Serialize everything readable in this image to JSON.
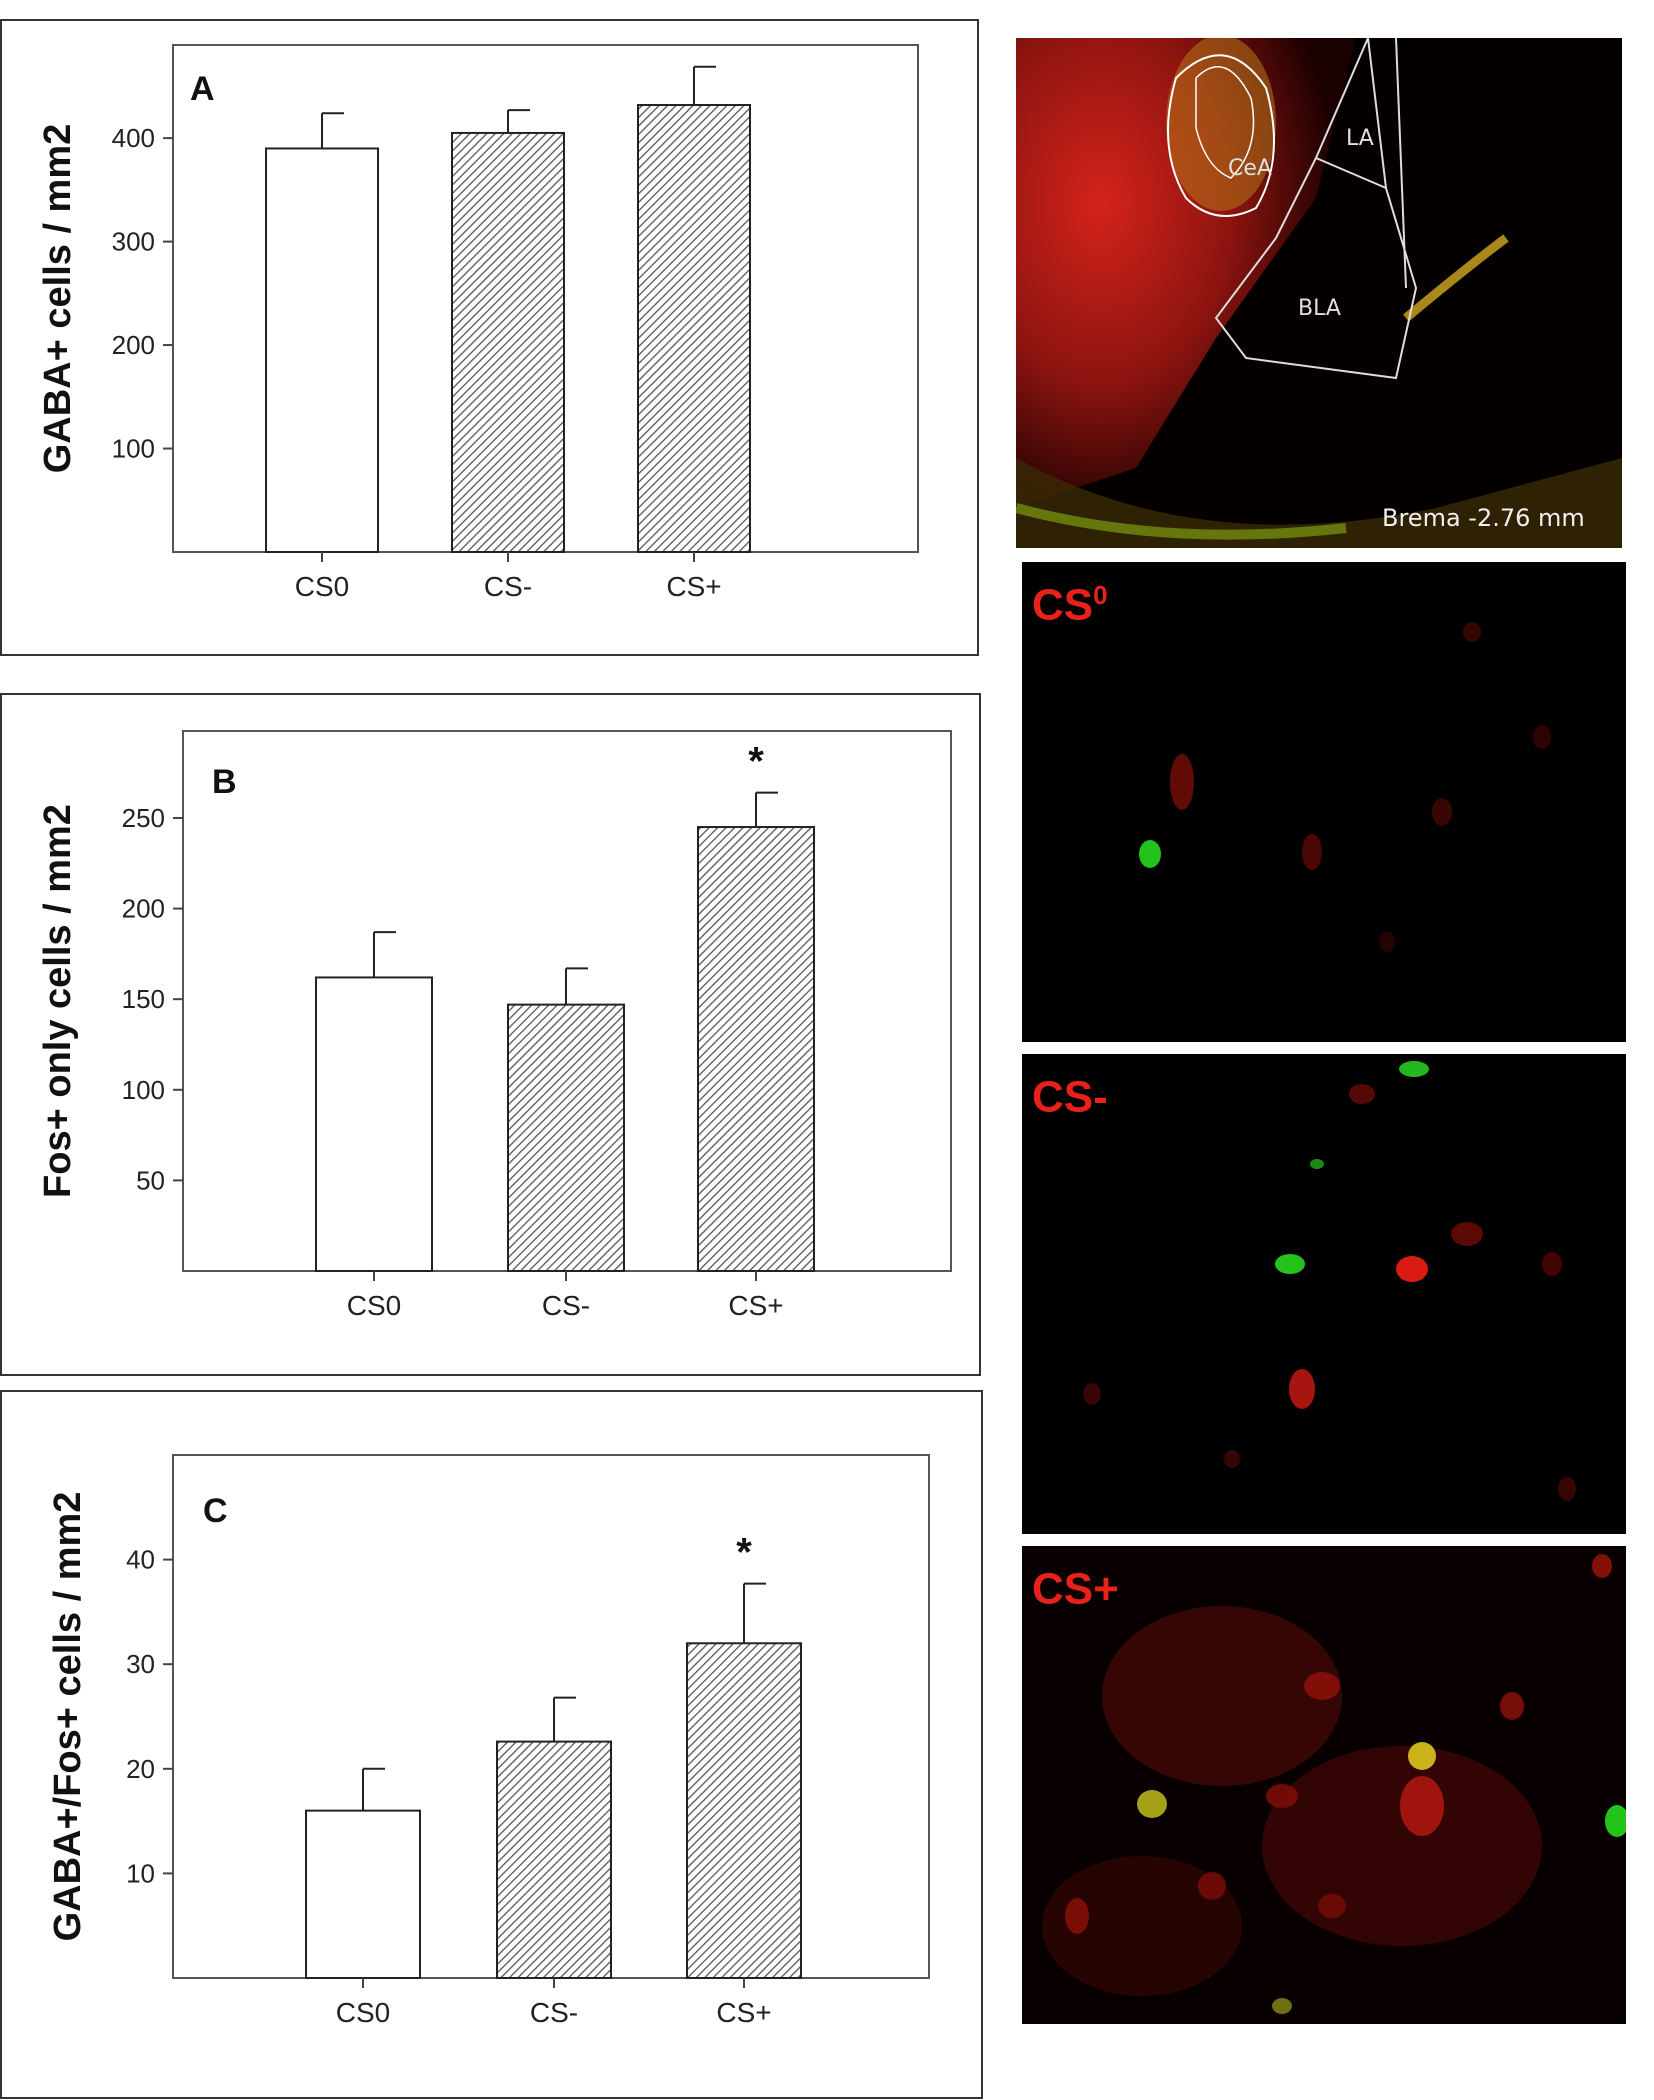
{
  "chart_data": [
    {
      "type": "bar",
      "panel_label": "A",
      "categories": [
        "CS0",
        "CS-",
        "CS+"
      ],
      "values": [
        390,
        405,
        432
      ],
      "errors": [
        34,
        22,
        37
      ],
      "significance": [
        "",
        "",
        ""
      ],
      "ylabel": "GABA+ cells / mm2",
      "yticks": [
        100,
        200,
        300,
        400
      ],
      "ylim": [
        0,
        490
      ],
      "fills": [
        "open",
        "hatched",
        "hatched"
      ],
      "grid": false
    },
    {
      "type": "bar",
      "panel_label": "B",
      "categories": [
        "CS0",
        "CS-",
        "CS+"
      ],
      "values": [
        162,
        147,
        245
      ],
      "errors": [
        25,
        20,
        19
      ],
      "significance": [
        "",
        "",
        "*"
      ],
      "ylabel": "Fos+ only cells / mm2",
      "yticks": [
        50,
        100,
        150,
        200,
        250
      ],
      "ylim": [
        0,
        298
      ],
      "fills": [
        "open",
        "hatched",
        "hatched"
      ],
      "grid": false
    },
    {
      "type": "bar",
      "panel_label": "C",
      "categories": [
        "CS0",
        "CS-",
        "CS+"
      ],
      "values": [
        16,
        22.6,
        32
      ],
      "errors": [
        4,
        4.2,
        5.7
      ],
      "significance": [
        "",
        "",
        "*"
      ],
      "ylabel": "GABA+/Fos+ cells / mm2",
      "yticks": [
        10,
        20,
        30,
        40
      ],
      "ylim": [
        0,
        50
      ],
      "fills": [
        "open",
        "hatched",
        "hatched"
      ],
      "grid": false
    }
  ],
  "micrographs": {
    "overview": {
      "regions": [
        "CeA",
        "LA",
        "BLA"
      ],
      "bregma_label": "Brema -2.76 mm"
    },
    "panels": [
      {
        "label_main": "CS",
        "label_sup": "0"
      },
      {
        "label_main": "CS-",
        "label_sup": ""
      },
      {
        "label_main": "CS+",
        "label_sup": ""
      }
    ]
  }
}
